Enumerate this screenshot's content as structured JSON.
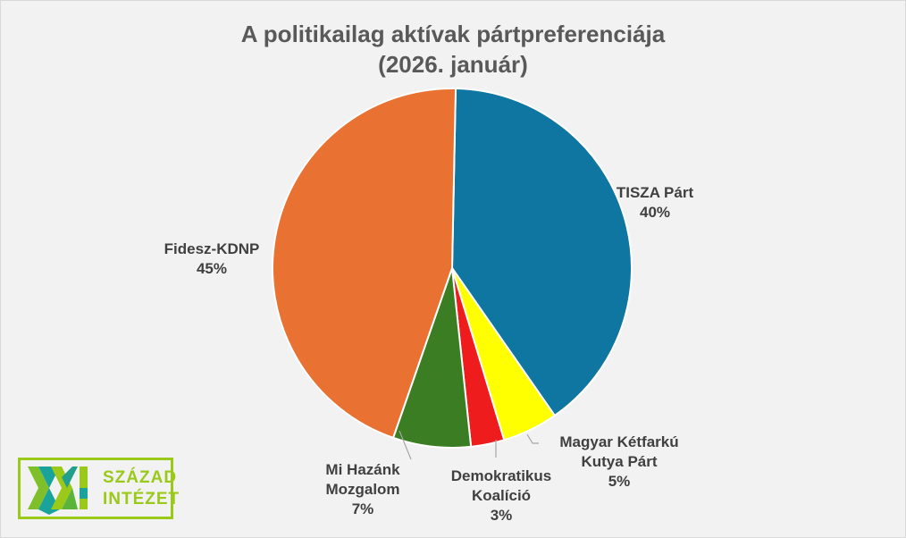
{
  "chart_data": {
    "type": "pie",
    "title": "A politikailag aktívak pártpreferenciája",
    "subtitle": "(2026. január)",
    "slices": [
      {
        "name": "TISZA Párt",
        "value": 40,
        "label": "40%",
        "color": "#0e76a0"
      },
      {
        "name": "Magyar Kétfarkú Kutya Párt",
        "value": 5,
        "label": "5%",
        "color": "#ffff00"
      },
      {
        "name": "Demokratikus Koalíció",
        "value": 3,
        "label": "3%",
        "color": "#ee1c1c"
      },
      {
        "name": "Mi Hazánk Mozgalom",
        "value": 7,
        "label": "7%",
        "color": "#3b7d23"
      },
      {
        "name": "Fidesz-KDNP",
        "value": 45,
        "label": "45%",
        "color": "#e97132"
      }
    ],
    "start": "top",
    "direction": "clockwise"
  },
  "labels": {
    "tisza": [
      "TISZA Párt",
      "40%"
    ],
    "mkkp": [
      "Magyar Kétfarkú",
      "Kutya Párt",
      "5%"
    ],
    "dk": [
      "Demokratikus",
      "Koalíció",
      "3%"
    ],
    "mi": [
      "Mi Hazánk",
      "Mozgalom",
      "7%"
    ],
    "fidesz": [
      "Fidesz-KDNP",
      "45%"
    ]
  },
  "logo": {
    "line1": "SZÁZAD",
    "line2": "INTÉZET",
    "mark": "XXI"
  }
}
